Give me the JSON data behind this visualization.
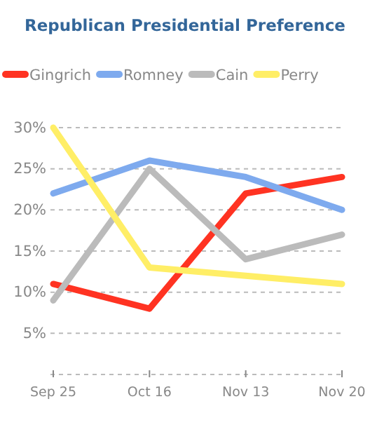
{
  "chart_data": {
    "type": "line",
    "title": "Republican Presidential Preference",
    "categories": [
      "Sep 25",
      "Oct 16",
      "Nov 13",
      "Nov 20"
    ],
    "series": [
      {
        "name": "Gingrich",
        "color": "#ff3322",
        "values": [
          11,
          8,
          22,
          24
        ]
      },
      {
        "name": "Romney",
        "color": "#7eaaee",
        "values": [
          22,
          26,
          24,
          20
        ]
      },
      {
        "name": "Cain",
        "color": "#bbbbbb",
        "values": [
          9,
          25,
          14,
          17
        ]
      },
      {
        "name": "Perry",
        "color": "#ffee66",
        "values": [
          30,
          13,
          12,
          11
        ]
      }
    ],
    "ylim": [
      0,
      30
    ],
    "yticks": [
      {
        "value": 0,
        "label": null
      },
      {
        "value": 5,
        "label": "5%"
      },
      {
        "value": 10,
        "label": "10%"
      },
      {
        "value": 15,
        "label": "15%"
      },
      {
        "value": 20,
        "label": "20%"
      },
      {
        "value": 25,
        "label": "25%"
      },
      {
        "value": 30,
        "label": "30%"
      }
    ],
    "grid": "y",
    "legend": "top",
    "marker": "none",
    "line_style": "solid"
  }
}
